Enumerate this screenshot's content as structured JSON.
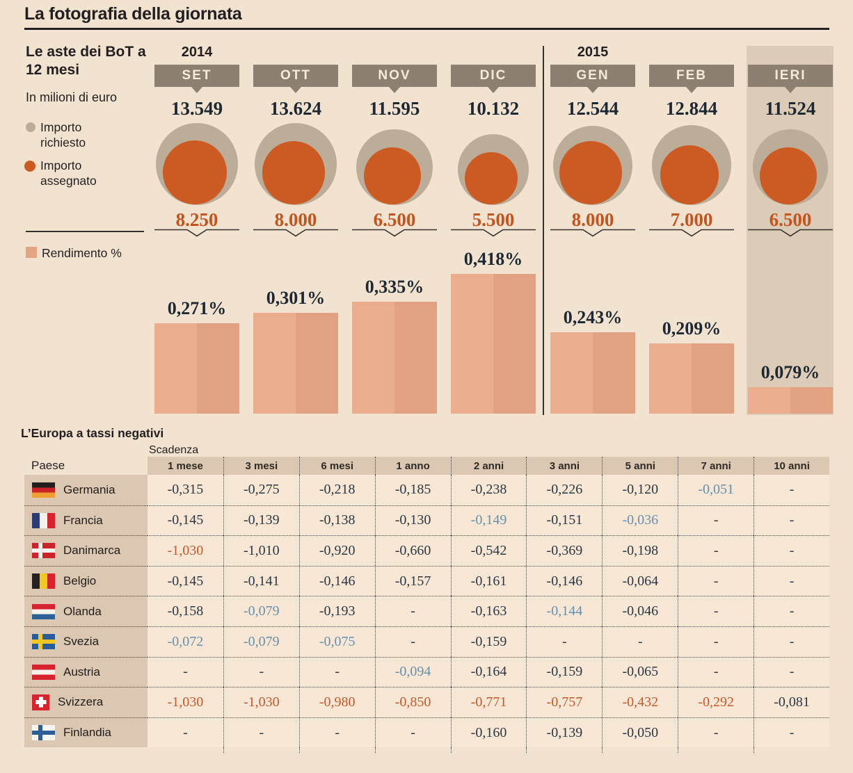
{
  "page_title": "La fotografia della giornata",
  "colors": {
    "background": "#f2e3d1",
    "requested_circle": "#bcad99",
    "assigned_circle": "#cc5a23",
    "assigned_text": "#c5531d",
    "yield_bar": "#e7a887",
    "month_tab": "#8d8073",
    "ieri_highlight": "#dbcbb7",
    "table_band": "#dbc7b2",
    "table_cell": "#f7e7d4",
    "value_blue": "#6690ae",
    "value_orange": "#c8582a"
  },
  "auction": {
    "heading": "Le aste dei BoT a 12 mesi",
    "unit_note": "In milioni di euro",
    "legend_requested": "Importo richiesto",
    "legend_assigned": "Importo assegnato",
    "yield_legend": "Rendimento %",
    "columns": [
      {
        "year": "2014",
        "month": "SET",
        "richiesto": "13.549",
        "assegnato": "8.250",
        "rendimento": "0,271%",
        "highlight": false
      },
      {
        "year": "",
        "month": "OTT",
        "richiesto": "13.624",
        "assegnato": "8.000",
        "rendimento": "0,301%",
        "highlight": false
      },
      {
        "year": "",
        "month": "NOV",
        "richiesto": "11.595",
        "assegnato": "6.500",
        "rendimento": "0,335%",
        "highlight": false
      },
      {
        "year": "",
        "month": "DIC",
        "richiesto": "10.132",
        "assegnato": "5.500",
        "rendimento": "0,418%",
        "highlight": false
      },
      {
        "year": "2015",
        "month": "GEN",
        "richiesto": "12.544",
        "assegnato": "8.000",
        "rendimento": "0,243%",
        "highlight": false
      },
      {
        "year": "",
        "month": "FEB",
        "richiesto": "12.844",
        "assegnato": "7.000",
        "rendimento": "0,209%",
        "highlight": false
      },
      {
        "year": "",
        "month": "IERI",
        "richiesto": "11.524",
        "assegnato": "6.500",
        "rendimento": "0,079%",
        "highlight": true
      }
    ]
  },
  "chart_data": [
    {
      "type": "bubble",
      "title": "Le aste dei BoT a 12 mesi",
      "subtitle": "In milioni di euro",
      "categories": [
        "SET 2014",
        "OTT 2014",
        "NOV 2014",
        "DIC 2014",
        "GEN 2015",
        "FEB 2015",
        "IERI"
      ],
      "series": [
        {
          "name": "Importo richiesto",
          "values": [
            13549,
            13624,
            11595,
            10132,
            12544,
            12844,
            11524
          ]
        },
        {
          "name": "Importo assegnato",
          "values": [
            8250,
            8000,
            6500,
            5500,
            8000,
            7000,
            6500
          ]
        }
      ],
      "legend_position": "left"
    },
    {
      "type": "bar",
      "title": "Rendimento %",
      "categories": [
        "SET 2014",
        "OTT 2014",
        "NOV 2014",
        "DIC 2014",
        "GEN 2015",
        "FEB 2015",
        "IERI"
      ],
      "values": [
        0.271,
        0.301,
        0.335,
        0.418,
        0.243,
        0.209,
        0.079
      ],
      "ylabel": "%",
      "ylim": [
        0,
        0.418
      ],
      "grid": false
    }
  ],
  "table": {
    "title": "L’Europa a tassi negativi",
    "scadenza_label": "Scadenza",
    "paese_label": "Paese",
    "col_headers": [
      "1 mese",
      "3 mesi",
      "6 mesi",
      "1 anno",
      "2 anni",
      "3 anni",
      "5 anni",
      "7 anni",
      "10 anni"
    ],
    "rows": [
      {
        "country": "Germania",
        "flag": "germania",
        "cells": [
          [
            "-0,315",
            ""
          ],
          [
            "-0,275",
            ""
          ],
          [
            "-0,218",
            ""
          ],
          [
            "-0,185",
            ""
          ],
          [
            "-0,238",
            ""
          ],
          [
            "-0,226",
            ""
          ],
          [
            "-0,120",
            ""
          ],
          [
            "-0,051",
            "blue"
          ],
          [
            "-",
            ""
          ]
        ]
      },
      {
        "country": "Francia",
        "flag": "francia",
        "cells": [
          [
            "-0,145",
            ""
          ],
          [
            "-0,139",
            ""
          ],
          [
            "-0,138",
            ""
          ],
          [
            "-0,130",
            ""
          ],
          [
            "-0,149",
            "blue"
          ],
          [
            "-0,151",
            ""
          ],
          [
            "-0,036",
            "blue"
          ],
          [
            "-",
            ""
          ],
          [
            "-",
            ""
          ]
        ]
      },
      {
        "country": "Danimarca",
        "flag": "danimarca",
        "cells": [
          [
            "-1,030",
            "orange"
          ],
          [
            "-1,010",
            ""
          ],
          [
            "-0,920",
            ""
          ],
          [
            "-0,660",
            ""
          ],
          [
            "-0,542",
            ""
          ],
          [
            "-0,369",
            ""
          ],
          [
            "-0,198",
            ""
          ],
          [
            "-",
            ""
          ],
          [
            "-",
            ""
          ]
        ]
      },
      {
        "country": "Belgio",
        "flag": "belgio",
        "cells": [
          [
            "-0,145",
            ""
          ],
          [
            "-0,141",
            ""
          ],
          [
            "-0,146",
            ""
          ],
          [
            "-0,157",
            ""
          ],
          [
            "-0,161",
            ""
          ],
          [
            "-0,146",
            ""
          ],
          [
            "-0,064",
            ""
          ],
          [
            "-",
            ""
          ],
          [
            "-",
            ""
          ]
        ]
      },
      {
        "country": "Olanda",
        "flag": "olanda",
        "cells": [
          [
            "-0,158",
            ""
          ],
          [
            "-0,079",
            "blue"
          ],
          [
            "-0,193",
            ""
          ],
          [
            "-",
            ""
          ],
          [
            "-0,163",
            ""
          ],
          [
            "-0,144",
            "blue"
          ],
          [
            "-0,046",
            ""
          ],
          [
            "-",
            ""
          ],
          [
            "-",
            ""
          ]
        ]
      },
      {
        "country": "Svezia",
        "flag": "svezia",
        "cells": [
          [
            "-0,072",
            "blue"
          ],
          [
            "-0,079",
            "blue"
          ],
          [
            "-0,075",
            "blue"
          ],
          [
            "-",
            ""
          ],
          [
            "-0,159",
            ""
          ],
          [
            "-",
            ""
          ],
          [
            "-",
            ""
          ],
          [
            "-",
            ""
          ],
          [
            "-",
            ""
          ]
        ]
      },
      {
        "country": "Austria",
        "flag": "austria",
        "cells": [
          [
            "-",
            ""
          ],
          [
            "-",
            ""
          ],
          [
            "-",
            ""
          ],
          [
            "-0,094",
            "blue"
          ],
          [
            "-0,164",
            ""
          ],
          [
            "-0,159",
            ""
          ],
          [
            "-0,065",
            ""
          ],
          [
            "-",
            ""
          ],
          [
            "-",
            ""
          ]
        ]
      },
      {
        "country": "Svizzera",
        "flag": "svizzera",
        "cells": [
          [
            "-1,030",
            "orange"
          ],
          [
            "-1,030",
            "orange"
          ],
          [
            "-0,980",
            "orange"
          ],
          [
            "-0,850",
            "orange"
          ],
          [
            "-0,771",
            "orange"
          ],
          [
            "-0,757",
            "orange"
          ],
          [
            "-0,432",
            "orange"
          ],
          [
            "-0,292",
            "orange"
          ],
          [
            "-0,081",
            ""
          ]
        ]
      },
      {
        "country": "Finlandia",
        "flag": "finlandia",
        "cells": [
          [
            "-",
            ""
          ],
          [
            "-",
            ""
          ],
          [
            "-",
            ""
          ],
          [
            "-",
            ""
          ],
          [
            "-0,160",
            ""
          ],
          [
            "-0,139",
            ""
          ],
          [
            "-0,050",
            ""
          ],
          [
            "-",
            ""
          ],
          [
            "-",
            ""
          ]
        ]
      }
    ]
  }
}
